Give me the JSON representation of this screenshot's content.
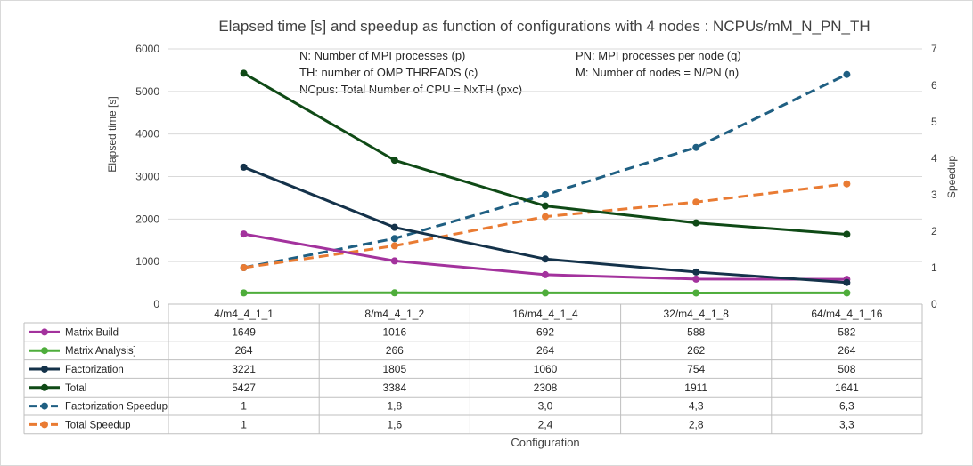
{
  "chart_data": {
    "type": "line",
    "title": "Elapsed time [s] and speedup  as function of configurations with 4 nodes : NCPUs/mM_N_PN_TH",
    "xlabel": "Configuration",
    "ylabel": "Elapsed time [s]",
    "y2label": "Speedup",
    "ylim": [
      0,
      6000
    ],
    "y2lim": [
      0,
      7
    ],
    "yticks": [
      "0",
      "1000",
      "2000",
      "3000",
      "4000",
      "5000",
      "6000"
    ],
    "y2ticks": [
      "0",
      "1",
      "2",
      "3",
      "4",
      "5",
      "6",
      "7"
    ],
    "grid": true,
    "legend": "data-table",
    "categories": [
      "4/m4_4_1_1",
      "8/m4_4_1_2",
      "16/m4_4_1_4",
      "32/m4_4_1_8",
      "64/m4_4_1_16"
    ],
    "annotations": [
      "N: Number of MPI processes (p)",
      "TH: number of OMP THREADS (c)",
      "NCpus: Total Number of CPU = NxTH (pxc)",
      "PN: MPI processes per node (q)",
      "M: Number of nodes = N/PN (n)"
    ],
    "series": [
      {
        "name": "Matrix Build",
        "axis": "left",
        "style": "solid",
        "color": "#a3329d",
        "values": [
          1649,
          1016,
          692,
          588,
          582
        ],
        "labels": [
          "1649",
          "1016",
          "692",
          "588",
          "582"
        ]
      },
      {
        "name": "Matrix Analysis]",
        "axis": "left",
        "style": "solid",
        "color": "#4ead3b",
        "values": [
          264,
          266,
          264,
          262,
          264
        ],
        "labels": [
          "264",
          "266",
          "264",
          "262",
          "264"
        ]
      },
      {
        "name": "Factorization",
        "axis": "left",
        "style": "solid",
        "color": "#14324a",
        "values": [
          3221,
          1805,
          1060,
          754,
          508
        ],
        "labels": [
          "3221",
          "1805",
          "1060",
          "754",
          "508"
        ]
      },
      {
        "name": "Total",
        "axis": "left",
        "style": "solid",
        "color": "#0f4a16",
        "values": [
          5427,
          3384,
          2308,
          1911,
          1641
        ],
        "labels": [
          "5427",
          "3384",
          "2308",
          "1911",
          "1641"
        ]
      },
      {
        "name": "Factorization Speedup",
        "axis": "right",
        "style": "dashed",
        "color": "#1f5f82",
        "values": [
          1,
          1.8,
          3.0,
          4.3,
          6.3
        ],
        "labels": [
          "1",
          "1,8",
          "3,0",
          "4,3",
          "6,3"
        ]
      },
      {
        "name": "Total Speedup",
        "axis": "right",
        "style": "dashed",
        "color": "#e97b33",
        "values": [
          1,
          1.6,
          2.4,
          2.8,
          3.3
        ],
        "labels": [
          "1",
          "1,6",
          "2,4",
          "2,8",
          "3,3"
        ]
      }
    ]
  }
}
